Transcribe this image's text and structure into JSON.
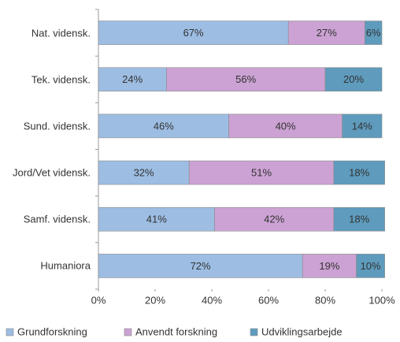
{
  "chart_data": {
    "type": "stacked-bar-horizontal",
    "categories": [
      "Nat. vidensk.",
      "Tek. vidensk.",
      "Sund. vidensk.",
      "Jord/Vet vidensk.",
      "Samf. vidensk.",
      "Humaniora"
    ],
    "series": [
      {
        "name": "Grundforskning",
        "color": "#9dbde3",
        "values": [
          67,
          24,
          46,
          32,
          41,
          72
        ],
        "value_labels": [
          "67%",
          "24%",
          "46%",
          "32%",
          "41%",
          "72%"
        ]
      },
      {
        "name": "Anvendt forskning",
        "color": "#cba2d3",
        "values": [
          27,
          56,
          40,
          51,
          42,
          19
        ],
        "value_labels": [
          "27%",
          "56%",
          "40%",
          "51%",
          "42%",
          "19%"
        ]
      },
      {
        "name": "Udviklingsarbejde",
        "color": "#5e9bbd",
        "values": [
          6,
          20,
          14,
          18,
          18,
          10
        ],
        "value_labels": [
          "6%",
          "20%",
          "14%",
          "18%",
          "18%",
          "10%"
        ]
      }
    ],
    "xlim": [
      0,
      100
    ],
    "xticks": [
      {
        "value": 0,
        "label": "0%"
      },
      {
        "value": 20,
        "label": "20%"
      },
      {
        "value": 40,
        "label": "40%"
      },
      {
        "value": 60,
        "label": "60%"
      },
      {
        "value": 80,
        "label": "80%"
      },
      {
        "value": 100,
        "label": "100%"
      }
    ]
  }
}
